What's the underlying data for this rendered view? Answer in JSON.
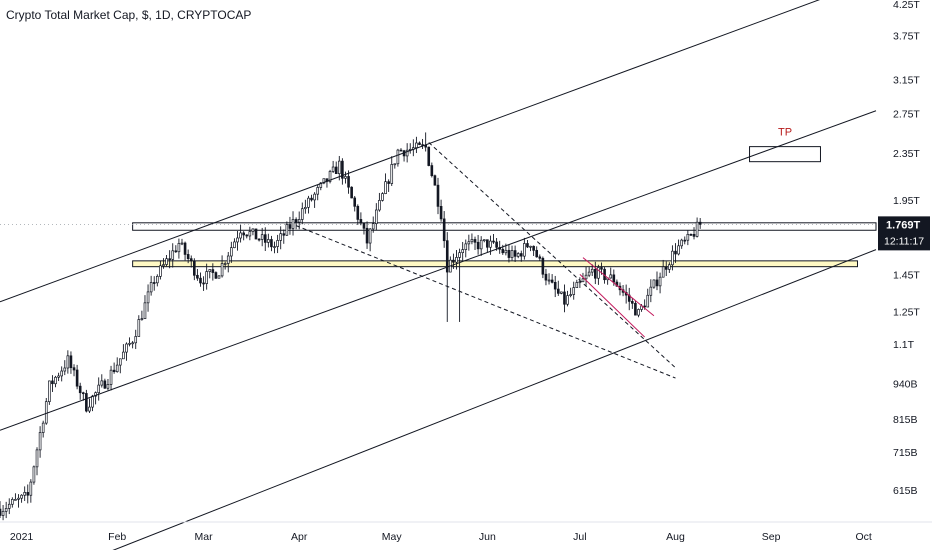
{
  "chart_data": {
    "type": "candlestick",
    "title": "Crypto Total Market Cap, $, 1D, CRYPTOCAP",
    "price_axis_ticks": [
      {
        "label": "4.25T",
        "value": 4.25
      },
      {
        "label": "3.75T",
        "value": 3.75
      },
      {
        "label": "3.15T",
        "value": 3.15
      },
      {
        "label": "2.75T",
        "value": 2.75
      },
      {
        "label": "2.35T",
        "value": 2.35
      },
      {
        "label": "1.95T",
        "value": 1.95
      },
      {
        "label": "1.45T",
        "value": 1.45
      },
      {
        "label": "1.25T",
        "value": 1.25
      },
      {
        "label": "1.1T",
        "value": 1.1
      },
      {
        "label": "940B",
        "value": 0.94
      },
      {
        "label": "815B",
        "value": 0.815
      },
      {
        "label": "715B",
        "value": 0.715
      },
      {
        "label": "615B",
        "value": 0.615
      }
    ],
    "time_axis_ticks": [
      "2021",
      "Feb",
      "Mar",
      "Apr",
      "May",
      "Jun",
      "Jul",
      "Aug",
      "Sep",
      "Oct"
    ],
    "y_scale": "log",
    "x_range": [
      "2020-12-25",
      "2021-10-05"
    ],
    "current_price": {
      "label": "1.769T",
      "countdown": "12:11:17",
      "value": 1.769
    },
    "annotations": [
      {
        "text": "TP",
        "color": "#b71c1c"
      }
    ],
    "colors": {
      "candle_up": "#ffffff",
      "candle_down": "#131722",
      "candle_outline": "#131722",
      "channel": "#131722",
      "wedge": "#c2185b",
      "zone_fill": "#fff9c4",
      "tp_text": "#b71c1c",
      "price_label_bg": "#131722"
    },
    "keypoints": [
      {
        "date": "2020-12-25",
        "close": 0.57
      },
      {
        "date": "2021-01-03",
        "close": 0.6
      },
      {
        "date": "2021-01-10",
        "close": 0.93
      },
      {
        "date": "2021-01-16",
        "close": 1.03
      },
      {
        "date": "2021-01-22",
        "close": 0.86
      },
      {
        "date": "2021-01-29",
        "close": 0.96
      },
      {
        "date": "2021-02-06",
        "close": 1.12
      },
      {
        "date": "2021-02-13",
        "close": 1.42
      },
      {
        "date": "2021-02-21",
        "close": 1.64
      },
      {
        "date": "2021-02-28",
        "close": 1.42
      },
      {
        "date": "2021-03-06",
        "close": 1.47
      },
      {
        "date": "2021-03-13",
        "close": 1.74
      },
      {
        "date": "2021-03-24",
        "close": 1.62
      },
      {
        "date": "2021-04-02",
        "close": 1.87
      },
      {
        "date": "2021-04-14",
        "close": 2.24
      },
      {
        "date": "2021-04-23",
        "close": 1.65
      },
      {
        "date": "2021-05-03",
        "close": 2.37
      },
      {
        "date": "2021-05-12",
        "close": 2.4
      },
      {
        "date": "2021-05-17",
        "close": 1.85
      },
      {
        "date": "2021-05-19",
        "close": 1.5
      },
      {
        "date": "2021-05-24",
        "close": 1.62
      },
      {
        "date": "2021-06-01",
        "close": 1.64
      },
      {
        "date": "2021-06-10",
        "close": 1.55
      },
      {
        "date": "2021-06-15",
        "close": 1.65
      },
      {
        "date": "2021-06-21",
        "close": 1.4
      },
      {
        "date": "2021-06-26",
        "close": 1.3
      },
      {
        "date": "2021-07-05",
        "close": 1.47
      },
      {
        "date": "2021-07-12",
        "close": 1.42
      },
      {
        "date": "2021-07-20",
        "close": 1.24
      },
      {
        "date": "2021-07-27",
        "close": 1.45
      },
      {
        "date": "2021-08-01",
        "close": 1.6
      },
      {
        "date": "2021-08-05",
        "close": 1.66
      },
      {
        "date": "2021-08-09",
        "close": 1.769
      }
    ],
    "trendlines": [
      {
        "name": "channel-upper",
        "style": "solid",
        "points": [
          [
            "2020-12-25",
            1.3
          ],
          [
            "2021-09-18",
            4.35
          ]
        ]
      },
      {
        "name": "channel-middle",
        "style": "solid",
        "points": [
          [
            "2020-12-25",
            0.78
          ],
          [
            "2021-10-05",
            2.78
          ]
        ]
      },
      {
        "name": "channel-lower",
        "style": "solid",
        "points": [
          [
            "2021-01-29",
            0.48
          ],
          [
            "2021-10-05",
            1.6
          ]
        ]
      },
      {
        "name": "dashed-upper",
        "style": "dashed",
        "points": [
          [
            "2021-05-13",
            2.45
          ],
          [
            "2021-08-01",
            1.0
          ]
        ]
      },
      {
        "name": "dashed-lower",
        "style": "dashed",
        "points": [
          [
            "2021-03-31",
            1.76
          ],
          [
            "2021-08-01",
            0.96
          ]
        ]
      },
      {
        "name": "wedge-upper",
        "style": "solid",
        "points": [
          [
            "2021-07-02",
            1.55
          ],
          [
            "2021-07-25",
            1.23
          ]
        ]
      },
      {
        "name": "wedge-lower",
        "style": "solid",
        "points": [
          [
            "2021-07-01",
            1.45
          ],
          [
            "2021-07-22",
            1.13
          ]
        ]
      }
    ],
    "zones": [
      {
        "name": "resistance-zone",
        "from": "2021-02-06",
        "to": "2021-10-05",
        "low": 1.728,
        "high": 1.78
      },
      {
        "name": "support-zone",
        "from": "2021-02-06",
        "to": "2021-09-29",
        "low": 1.495,
        "high": 1.53
      }
    ],
    "tp_box": {
      "from": "2021-08-25",
      "to": "2021-09-17",
      "low": 2.27,
      "high": 2.41
    }
  }
}
